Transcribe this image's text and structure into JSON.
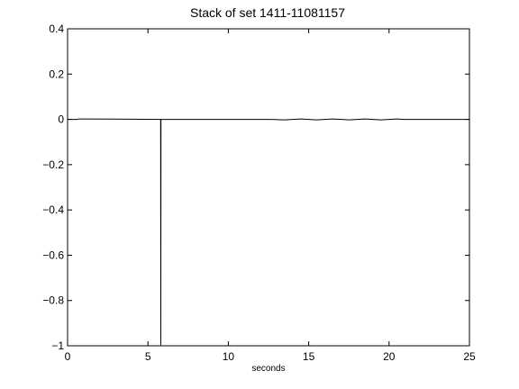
{
  "chart_data": {
    "type": "line",
    "title": "Stack of set 1411-11081157",
    "xlabel": "seconds",
    "ylabel": "",
    "xlim": [
      0,
      25
    ],
    "ylim": [
      -1,
      0.4
    ],
    "xticks": [
      0,
      5,
      10,
      15,
      20,
      25
    ],
    "yticks": [
      -1,
      -0.8,
      -0.6,
      -0.4,
      -0.2,
      0,
      0.2,
      0.4
    ],
    "xtick_labels": [
      "0",
      "5",
      "10",
      "15",
      "20",
      "25"
    ],
    "ytick_labels": [
      "−1",
      "−0.8",
      "−0.6",
      "−0.4",
      "−0.2",
      "0",
      "0.2",
      "0.4"
    ],
    "grid": false,
    "legend": "none",
    "series": [
      {
        "color": "#000000",
        "x": [
          0.0,
          0.6,
          0.7,
          5.79,
          5.8,
          5.81,
          12.6,
          13.5,
          14.5,
          15.5,
          16.5,
          17.5,
          18.5,
          19.5,
          20.5,
          21.0,
          25.0
        ],
        "y": [
          0.0,
          0.0,
          0.002,
          0.0,
          -1.0,
          0.0,
          0.0,
          -0.002,
          0.002,
          -0.002,
          0.002,
          -0.002,
          0.002,
          -0.002,
          0.002,
          0.0,
          0.0
        ]
      }
    ]
  }
}
